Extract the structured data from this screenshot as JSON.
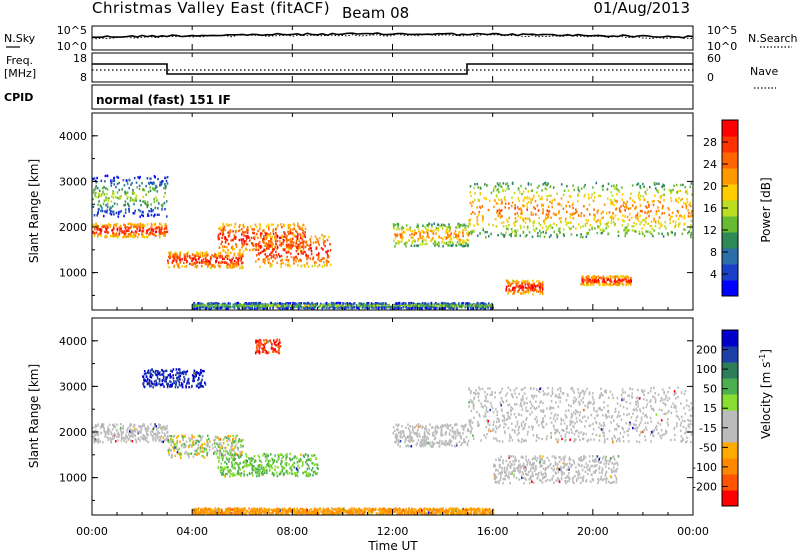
{
  "header": {
    "station": "Christmas Valley East (fitACF)",
    "beam": "Beam 08",
    "date": "01/Aug/2013"
  },
  "noise_panel": {
    "left_label": "N.Sky",
    "right_label": "N.Search",
    "left_ticks": [
      "10^5",
      "10^0"
    ],
    "right_ticks": [
      "10^5",
      "10^0"
    ]
  },
  "freq_panel": {
    "left_label_line1": "Freq.",
    "left_label_line2": "[MHz]",
    "right_label": "Nave",
    "left_ticks": [
      "18",
      "8"
    ],
    "right_ticks": [
      "60",
      "0"
    ]
  },
  "cpid": {
    "label": "CPID",
    "value": "normal (fast) 151 IF"
  },
  "chart_data": [
    {
      "type": "heatmap",
      "title": "",
      "ylabel": "Slant Range [km]",
      "xlabel": "",
      "ylim": [
        180,
        4500
      ],
      "yticks": [
        "1000",
        "2000",
        "3000",
        "4000"
      ],
      "colorbar": {
        "label": "Power [dB]",
        "ticks": [
          "4",
          "8",
          "12",
          "16",
          "20",
          "24",
          "28"
        ],
        "colors": [
          "#0000ff",
          "#1a3fc8",
          "#2b6fa8",
          "#2e8b57",
          "#66bb33",
          "#bbdd22",
          "#ffcc00",
          "#ff9900",
          "#ff6600",
          "#ff3300",
          "#ff0000"
        ]
      },
      "echo_regions": [
        {
          "t_start": 0.0,
          "t_end": 3.0,
          "r_center": 1950,
          "r_width": 300,
          "level": "high"
        },
        {
          "t_start": 0.0,
          "t_end": 3.0,
          "r_center": 2700,
          "r_width": 900,
          "level": "low"
        },
        {
          "t_start": 3.0,
          "t_end": 6.0,
          "r_center": 1300,
          "r_width": 350,
          "level": "high"
        },
        {
          "t_start": 5.0,
          "t_end": 8.5,
          "r_center": 1800,
          "r_width": 600,
          "level": "high"
        },
        {
          "t_start": 6.5,
          "t_end": 9.5,
          "r_center": 1500,
          "r_width": 700,
          "level": "high"
        },
        {
          "t_start": 12.0,
          "t_end": 15.0,
          "r_center": 1850,
          "r_width": 500,
          "level": "mid"
        },
        {
          "t_start": 15.0,
          "t_end": 24.0,
          "r_center": 2400,
          "r_width": 1200,
          "level": "mid"
        },
        {
          "t_start": 16.5,
          "t_end": 18.0,
          "r_center": 700,
          "r_width": 300,
          "level": "high"
        },
        {
          "t_start": 19.5,
          "t_end": 21.5,
          "r_center": 850,
          "r_width": 200,
          "level": "high"
        },
        {
          "t_start": 4.0,
          "t_end": 16.0,
          "r_center": 300,
          "r_width": 120,
          "level": "low"
        }
      ]
    },
    {
      "type": "heatmap",
      "title": "",
      "ylabel": "Slant Range [km]",
      "xlabel": "Time UT",
      "ylim": [
        180,
        4500
      ],
      "yticks": [
        "1000",
        "2000",
        "3000",
        "4000"
      ],
      "xticks": [
        "00:00",
        "04:00",
        "08:00",
        "12:00",
        "16:00",
        "20:00",
        "00:00"
      ],
      "xlim_hours": [
        0,
        24
      ],
      "colorbar": {
        "label": "Velocity [m s",
        "label_sup": "-1",
        "label_end": "]",
        "ticks": [
          "200",
          "100",
          "50",
          "15",
          "-15",
          "-50",
          "-100",
          "-200"
        ],
        "colors": [
          "#0000cc",
          "#1f3fa8",
          "#2e7d5a",
          "#4caf50",
          "#88dd33",
          "#bbbbbb",
          "#bbbbbb",
          "#ffaa00",
          "#ff8800",
          "#ff5500",
          "#ff0000"
        ]
      },
      "echo_regions": [
        {
          "t_start": 0.0,
          "t_end": 3.0,
          "r_center": 2000,
          "r_width": 400,
          "class": "ground"
        },
        {
          "t_start": 2.0,
          "t_end": 4.5,
          "r_center": 3200,
          "r_width": 400,
          "class": "toward"
        },
        {
          "t_start": 3.0,
          "t_end": 6.0,
          "r_center": 1700,
          "r_width": 500,
          "class": "mixed"
        },
        {
          "t_start": 5.0,
          "t_end": 9.0,
          "r_center": 1300,
          "r_width": 500,
          "class": "green"
        },
        {
          "t_start": 6.5,
          "t_end": 7.5,
          "r_center": 3900,
          "r_width": 300,
          "class": "away"
        },
        {
          "t_start": 12.0,
          "t_end": 15.0,
          "r_center": 1950,
          "r_width": 500,
          "class": "ground"
        },
        {
          "t_start": 15.0,
          "t_end": 24.0,
          "r_center": 2400,
          "r_width": 1200,
          "class": "ground"
        },
        {
          "t_start": 16.0,
          "t_end": 21.0,
          "r_center": 1200,
          "r_width": 600,
          "class": "ground"
        },
        {
          "t_start": 4.0,
          "t_end": 16.0,
          "r_center": 280,
          "r_width": 140,
          "class": "away_low"
        }
      ]
    }
  ]
}
